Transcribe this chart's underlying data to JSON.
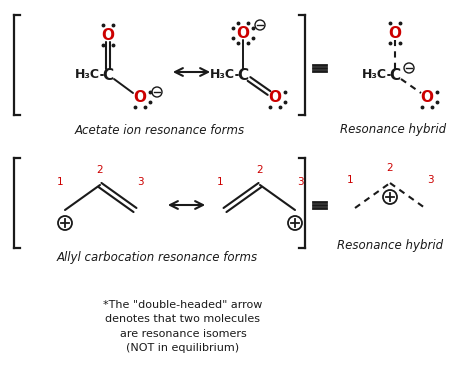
{
  "bg_color": "#ffffff",
  "black": "#1a1a1a",
  "red": "#cc0000",
  "acetate_label": "Acetate ion resonance forms",
  "resonance_hybrid_label1": "Resonance hybrid",
  "allyl_label": "Allyl carbocation resonance forms",
  "resonance_hybrid_label2": "Resonance hybrid",
  "footnote": "*The \"double-headed\" arrow\ndenotes that two molecules\nare resonance isomers\n(NOT in equilibrium)",
  "fig_w": 4.74,
  "fig_h": 3.68,
  "dpi": 100
}
